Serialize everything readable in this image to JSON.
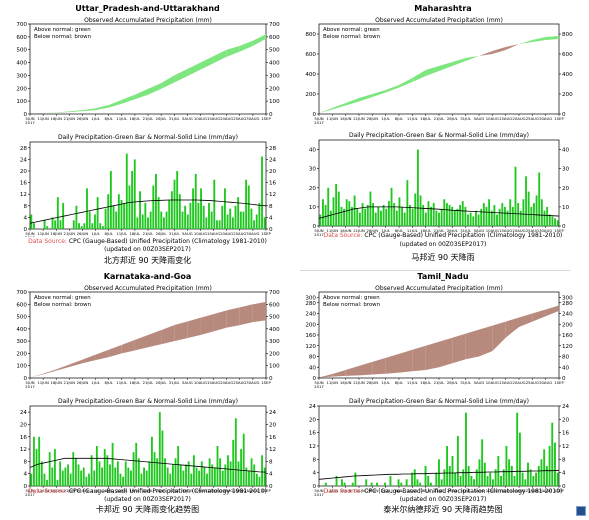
{
  "colors": {
    "above": "#7ee67e",
    "below": "#b88a7e",
    "bar": "#1ec81e",
    "normal": "#000000",
    "source_label": "#e05050"
  },
  "source": {
    "label": "Data Source:",
    "text": "CPC (Gauge-Based) Unified Precipitation (Climatology 1981-2010)",
    "updated": "(updated on 00Z03SEP2017)"
  },
  "panels": [
    {
      "id": "uttar",
      "region": "Uttar_Pradesh-and-Uttarakhand",
      "caption": "北方邦近 90 天降雨变化",
      "chart_data": [
        {
          "type": "area",
          "title": "Observed Accumulated Precipitation (mm)",
          "legend": [
            "Above normal: green",
            "Below normal: brown"
          ],
          "x_ticks": [
            "5JUN\n2017",
            "11JUN",
            "16JUN",
            "21JUN",
            "26JUN",
            "1JUL",
            "6JUL",
            "11JUL",
            "16JUL",
            "21JUL",
            "26JUL",
            "31JUL",
            "5AUG",
            "10AUG",
            "15AUG",
            "20AUG",
            "25AUG",
            "30AUG",
            "1SEP"
          ],
          "ylim": [
            0,
            700
          ],
          "y_ticks": [
            0,
            100,
            200,
            300,
            400,
            500,
            600,
            700
          ],
          "observed": [
            5,
            8,
            12,
            20,
            30,
            45,
            70,
            110,
            150,
            195,
            240,
            300,
            350,
            400,
            450,
            500,
            530,
            570,
            620
          ],
          "normal": [
            5,
            7,
            10,
            15,
            22,
            30,
            50,
            80,
            115,
            150,
            195,
            245,
            295,
            345,
            395,
            445,
            485,
            530,
            585
          ]
        },
        {
          "type": "bar",
          "title": "Daily Precipitation-Green Bar & Normal-Solid Line (mm/day)",
          "ylim": [
            0,
            30
          ],
          "y_ticks": [
            0,
            4,
            8,
            12,
            16,
            20,
            24,
            28
          ],
          "values": [
            5,
            2,
            0,
            0,
            0,
            3,
            1,
            0,
            4,
            3,
            11,
            3,
            9,
            0,
            0,
            0,
            3,
            8,
            2,
            1,
            2,
            14,
            6,
            2,
            5,
            11,
            2,
            1,
            7,
            12,
            20,
            8,
            6,
            12,
            10,
            9,
            26,
            15,
            20,
            24,
            4,
            13,
            5,
            9,
            4,
            6,
            15,
            19,
            11,
            6,
            4,
            6,
            10,
            13,
            17,
            20,
            12,
            6,
            8,
            5,
            9,
            14,
            19,
            9,
            14,
            8,
            4,
            9,
            6,
            17,
            3,
            3,
            8,
            14,
            5,
            7,
            4,
            8,
            11,
            6,
            6,
            17,
            15,
            7,
            3,
            5,
            9,
            25,
            4
          ],
          "normal": [
            2,
            2.5,
            3,
            3.5,
            4,
            4.5,
            5,
            5.5,
            6,
            6.5,
            7,
            7.5,
            8,
            8.5,
            9,
            9.3,
            9.5,
            9.7,
            9.8,
            9.9,
            10,
            10,
            10,
            10,
            10,
            9.9,
            9.8,
            9.6,
            9.4,
            9.2,
            9,
            8.8,
            8.5,
            8.2,
            8
          ]
        }
      ]
    },
    {
      "id": "maharashtra",
      "region": "Maharashtra",
      "caption": "马邦近 90 天降雨",
      "chart_data": [
        {
          "type": "area",
          "title": "Observed Accumulated Precipitation (mm)",
          "legend": [
            "Above normal: green",
            "Below normal: brown"
          ],
          "x_ticks": [
            "5JUN\n2017",
            "11JUN",
            "16JUN",
            "21JUN",
            "26JUN",
            "1JUL",
            "6JUL",
            "11JUL",
            "16JUL",
            "21JUL",
            "26JUL",
            "31JUL",
            "5AUG",
            "10AUG",
            "15AUG",
            "20AUG",
            "25AUG",
            "30AUG",
            "1SEP"
          ],
          "ylim": [
            0,
            900
          ],
          "y_ticks": [
            0,
            200,
            400,
            600,
            800
          ],
          "observed": [
            10,
            60,
            110,
            160,
            200,
            240,
            290,
            360,
            440,
            480,
            520,
            560,
            580,
            600,
            640,
            700,
            740,
            770,
            780
          ],
          "normal": [
            10,
            45,
            85,
            125,
            170,
            215,
            265,
            320,
            380,
            430,
            480,
            530,
            580,
            630,
            670,
            700,
            720,
            740,
            750
          ]
        },
        {
          "type": "bar",
          "title": "Daily Precipitation-Green Bar & Normal-Solid Line (mm/day)",
          "ylim": [
            0,
            45
          ],
          "y_ticks": [
            0,
            10,
            20,
            30,
            40
          ],
          "values": [
            6,
            14,
            11,
            20,
            8,
            15,
            22,
            18,
            10,
            9,
            14,
            13,
            10,
            16,
            9,
            7,
            12,
            9,
            11,
            18,
            12,
            7,
            10,
            8,
            11,
            9,
            13,
            20,
            12,
            8,
            15,
            10,
            7,
            24,
            11,
            9,
            17,
            40,
            16,
            11,
            7,
            13,
            10,
            12,
            8,
            7,
            9,
            14,
            12,
            11,
            10,
            8,
            9,
            11,
            13,
            10,
            6,
            7,
            5,
            8,
            6,
            9,
            12,
            10,
            14,
            8,
            11,
            6,
            9,
            12,
            10,
            8,
            14,
            10,
            31,
            12,
            8,
            14,
            26,
            18,
            10,
            12,
            16,
            28,
            14,
            8,
            10,
            6,
            5,
            4,
            3
          ],
          "normal": [
            4,
            5,
            6,
            7,
            8,
            9,
            9.5,
            10,
            10,
            10,
            10,
            10,
            9.8,
            9.6,
            9.4,
            9.2,
            9,
            8.8,
            8.5,
            8.2,
            8,
            7.8,
            7.6,
            7.4,
            7.2,
            7,
            6.8,
            6.6,
            6.4,
            6.2,
            6,
            5.8,
            5.6,
            5.4,
            5.2
          ]
        }
      ]
    },
    {
      "id": "karnataka",
      "region": "Karnataka-and-Goa",
      "caption": "卡邦近 90 天降雨变化趋势图",
      "chart_data": [
        {
          "type": "area",
          "title": "Observed Accumulated Precipitation (mm)",
          "legend": [
            "Above normal: green",
            "Below normal: brown"
          ],
          "x_ticks": [
            "5JUN\n2017",
            "11JUN",
            "16JUN",
            "21JUN",
            "26JUN",
            "1JUL",
            "6JUL",
            "11JUL",
            "16JUL",
            "21JUL",
            "26JUL",
            "31JUL",
            "5AUG",
            "10AUG",
            "15AUG",
            "20AUG",
            "25AUG",
            "30AUG",
            "1SEP"
          ],
          "ylim": [
            0,
            700
          ],
          "y_ticks": [
            0,
            100,
            200,
            300,
            400,
            500,
            600,
            700
          ],
          "observed": [
            5,
            30,
            60,
            90,
            120,
            145,
            170,
            200,
            225,
            250,
            275,
            300,
            325,
            350,
            380,
            410,
            430,
            455,
            470
          ],
          "normal": [
            5,
            35,
            70,
            110,
            150,
            190,
            230,
            270,
            310,
            350,
            390,
            430,
            460,
            490,
            520,
            550,
            575,
            600,
            620
          ]
        },
        {
          "type": "bar",
          "title": "Daily Precipitation-Green Bar & Normal-Solid Line (mm/day)",
          "ylim": [
            0,
            26
          ],
          "y_ticks": [
            0,
            4,
            8,
            12,
            16,
            20,
            24
          ],
          "values": [
            4,
            16,
            12,
            16,
            8,
            4,
            2,
            11,
            6,
            12,
            2,
            8,
            5,
            6,
            7,
            4,
            11,
            9,
            7,
            5,
            6,
            3,
            4,
            10,
            5,
            13,
            8,
            6,
            12,
            10,
            7,
            14,
            6,
            8,
            4,
            3,
            8,
            6,
            5,
            11,
            14,
            9,
            4,
            6,
            5,
            8,
            16,
            11,
            9,
            24,
            18,
            9,
            6,
            4,
            7,
            9,
            13,
            7,
            5,
            7,
            8,
            4,
            10,
            6,
            5,
            8,
            6,
            4,
            9,
            7,
            6,
            13,
            9,
            5,
            7,
            10,
            8,
            15,
            22,
            8,
            12,
            17,
            6,
            5,
            9,
            7,
            4,
            3,
            10,
            6
          ],
          "normal": [
            6,
            7,
            7.5,
            8,
            8.5,
            9,
            9,
            9,
            9,
            9,
            9,
            9,
            8.8,
            8.6,
            8.4,
            8.2,
            8,
            7.8,
            7.6,
            7.4,
            7.2,
            7,
            6.8,
            6.6,
            6.4,
            6.2,
            6,
            5.8,
            5.6,
            5.4,
            5.2,
            5,
            4.8,
            4.6,
            4.5
          ]
        }
      ]
    },
    {
      "id": "tamil",
      "region": "Tamil_Nadu",
      "caption": "泰米尔纳德邦近 90 天降雨趋势图",
      "chart_data": [
        {
          "type": "area",
          "title": "Observed Accumulated Precipitation (mm)",
          "legend": [
            "Above normal: green",
            "Below normal: brown"
          ],
          "x_ticks": [
            "5JUN\n2017",
            "11JUN",
            "16JUN",
            "21JUN",
            "26JUN",
            "1JUL",
            "6JUL",
            "11JUL",
            "16JUL",
            "21JUL",
            "26JUL",
            "31JUL",
            "5AUG",
            "10AUG",
            "15AUG",
            "20AUG",
            "25AUG",
            "30AUG",
            "1SEP"
          ],
          "ylim": [
            0,
            320
          ],
          "y_ticks": [
            0,
            40,
            80,
            120,
            160,
            200,
            240,
            280,
            300
          ],
          "observed": [
            2,
            5,
            8,
            10,
            13,
            16,
            20,
            25,
            30,
            40,
            55,
            70,
            80,
            100,
            150,
            190,
            210,
            230,
            250
          ],
          "normal": [
            2,
            15,
            30,
            45,
            60,
            75,
            90,
            105,
            120,
            135,
            150,
            165,
            180,
            195,
            210,
            225,
            240,
            255,
            270
          ]
        },
        {
          "type": "bar",
          "title": "Daily Precipitation-Green Bar & Normal-Solid Line (mm/day)",
          "ylim": [
            0,
            24
          ],
          "y_ticks": [
            0,
            4,
            8,
            12,
            16,
            20,
            24
          ],
          "values": [
            0,
            0,
            1,
            0,
            0,
            0,
            3,
            0,
            2,
            1,
            0,
            0,
            1,
            4,
            0,
            0,
            0,
            2,
            0,
            1,
            0,
            1,
            0,
            0,
            1,
            0,
            3,
            0,
            0,
            2,
            1,
            0,
            2,
            0,
            4,
            5,
            2,
            1,
            0,
            6,
            3,
            1,
            0,
            4,
            8,
            2,
            5,
            12,
            6,
            9,
            4,
            15,
            3,
            5,
            22,
            6,
            3,
            2,
            5,
            8,
            14,
            7,
            3,
            4,
            2,
            5,
            9,
            3,
            5,
            12,
            8,
            6,
            3,
            22,
            16,
            4,
            2,
            7,
            5,
            3,
            4,
            6,
            8,
            11,
            6,
            12,
            19,
            13,
            4
          ],
          "normal": [
            2,
            2.2,
            2.4,
            2.6,
            2.8,
            3,
            3.1,
            3.2,
            3.3,
            3.4,
            3.5,
            3.5,
            3.6,
            3.6,
            3.7,
            3.7,
            3.8,
            3.8,
            3.9,
            3.9,
            4,
            4,
            4.1,
            4.1,
            4.2,
            4.2,
            4.3,
            4.3,
            4.4,
            4.4,
            4.5,
            4.5,
            4.6,
            4.6,
            4.7
          ]
        }
      ]
    }
  ]
}
